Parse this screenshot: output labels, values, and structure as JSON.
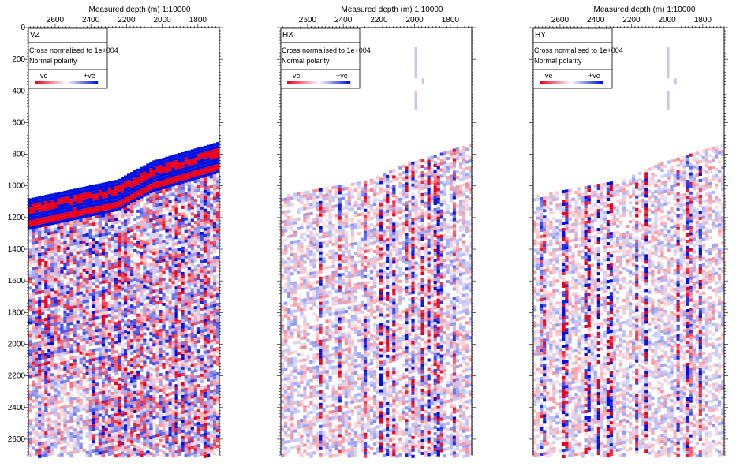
{
  "panels": [
    {
      "id": "vz",
      "component_label": "VZ",
      "header": "Measured depth (m)  1:10000",
      "x_ticks": [
        "2600",
        "2400",
        "2200",
        "2000",
        "1800"
      ],
      "legend_line1": "Cross normalised to 1e+004",
      "legend_line2": "Normal polarity",
      "neg_label": "-ve",
      "pos_label": "+ve",
      "show_y_axis": true,
      "intensity": 1.0,
      "seed": 11,
      "first_break_left": 1080,
      "first_break_right": 720
    },
    {
      "id": "hx",
      "component_label": "HX",
      "header": "Measured depth (m)  1:10000",
      "x_ticks": [
        "2600",
        "2400",
        "2200",
        "2000",
        "1800"
      ],
      "legend_line1": "Cross normalised to 1e+004",
      "legend_line2": "Normal polarity",
      "neg_label": "-ve",
      "pos_label": "+ve",
      "show_y_axis": false,
      "intensity": 0.55,
      "seed": 23,
      "first_break_left": 1060,
      "first_break_right": 730
    },
    {
      "id": "hy",
      "component_label": "HY",
      "header": "Measured depth (m)  1:10000",
      "x_ticks": [
        "2600",
        "2400",
        "2200",
        "2000",
        "1800"
      ],
      "legend_line1": "Cross normalised to 1e+004",
      "legend_line2": "Normal polarity",
      "neg_label": "-ve",
      "pos_label": "+ve",
      "show_y_axis": false,
      "intensity": 0.5,
      "seed": 37,
      "first_break_left": 1060,
      "first_break_right": 730
    }
  ],
  "y_axis_ticks": [
    "0",
    "200",
    "400",
    "600",
    "800",
    "1000",
    "1200",
    "1400",
    "1600",
    "1800",
    "2000",
    "2200",
    "2400",
    "2600"
  ],
  "colors": {
    "negative": "#e8001c",
    "positive": "#0010e0",
    "frame": "#000000"
  },
  "chart_data": [
    {
      "type": "heatmap",
      "title": "VZ",
      "header": "Measured depth (m)  1:10000",
      "x_ticks": [
        2600,
        2400,
        2200,
        2000,
        1800
      ],
      "y_ticks": [
        0,
        200,
        400,
        600,
        800,
        1000,
        1200,
        1400,
        1600,
        1800,
        2000,
        2200,
        2400,
        2600
      ],
      "xlim": [
        2750,
        1680
      ],
      "ylim": [
        0,
        2700
      ],
      "colorscale": [
        "-ve red",
        "white",
        "+ve blue"
      ],
      "first_break": [
        [
          2750,
          1080
        ],
        [
          2250,
          960
        ],
        [
          2050,
          840
        ],
        [
          1680,
          720
        ]
      ],
      "annotation": [
        "Cross normalised to 1e+004",
        "Normal polarity"
      ]
    },
    {
      "type": "heatmap",
      "title": "HX",
      "header": "Measured depth (m)  1:10000",
      "x_ticks": [
        2600,
        2400,
        2200,
        2000,
        1800
      ],
      "xlim": [
        2750,
        1680
      ],
      "ylim": [
        0,
        2700
      ],
      "colorscale": [
        "-ve red",
        "white",
        "+ve blue"
      ],
      "first_break": [
        [
          2750,
          1060
        ],
        [
          2250,
          960
        ],
        [
          2050,
          860
        ],
        [
          1680,
          730
        ]
      ],
      "annotation": [
        "Cross normalised to 1e+004",
        "Normal polarity"
      ]
    },
    {
      "type": "heatmap",
      "title": "HY",
      "header": "Measured depth (m)  1:10000",
      "x_ticks": [
        2600,
        2400,
        2200,
        2000,
        1800
      ],
      "xlim": [
        2750,
        1680
      ],
      "ylim": [
        0,
        2700
      ],
      "colorscale": [
        "-ve red",
        "white",
        "+ve blue"
      ],
      "first_break": [
        [
          2750,
          1060
        ],
        [
          2250,
          960
        ],
        [
          2050,
          860
        ],
        [
          1680,
          730
        ]
      ],
      "annotation": [
        "Cross normalised to 1e+004",
        "Normal polarity"
      ]
    }
  ]
}
